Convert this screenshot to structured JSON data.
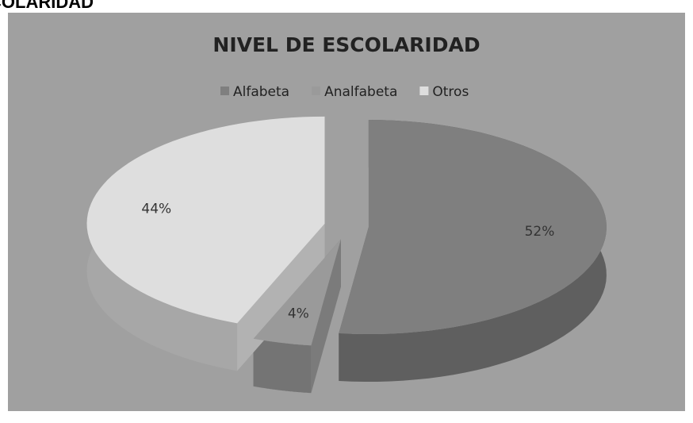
{
  "heading": "COLARIDAD",
  "chart_data": {
    "type": "pie",
    "title": "NIVEL DE ESCOLARIDAD",
    "categories": [
      "Alfabeta",
      "Analfabeta",
      "Otros"
    ],
    "values": [
      52,
      4,
      44
    ],
    "value_labels": [
      "52%",
      "4%",
      "44%"
    ],
    "colors": [
      "#7f7f7f",
      "#9a9a9a",
      "#dedede"
    ],
    "legend": "top"
  }
}
